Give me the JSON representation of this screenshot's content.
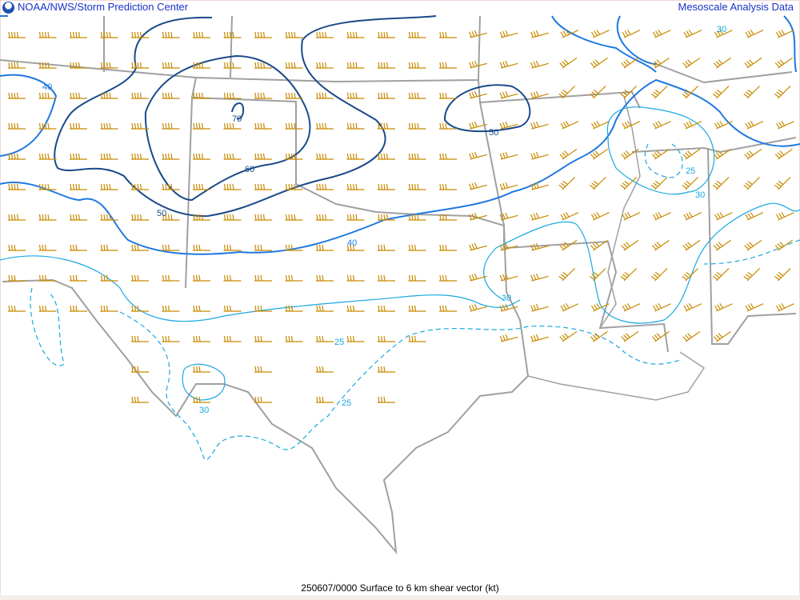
{
  "header": {
    "left_title": "NOAA/NWS/Storm Prediction Center",
    "right_title": "Mesoscale Analysis Data",
    "logo": "noaa-logo"
  },
  "footer": {
    "caption": "250607/0000 Surface to 6 km shear vector (kt)"
  },
  "colors": {
    "barb": "#c88a00",
    "boundary": "#a0a0a0",
    "contour_strong": "#1a4a8a",
    "contour_mid": "#1e78e0",
    "contour_light": "#1aa8e0"
  },
  "contour_labels": [
    {
      "id": "l40a",
      "text": "40"
    },
    {
      "id": "l70",
      "text": "70"
    },
    {
      "id": "l60",
      "text": "60"
    },
    {
      "id": "l50a",
      "text": "50"
    },
    {
      "id": "l50b",
      "text": "50"
    },
    {
      "id": "l40b",
      "text": "40"
    },
    {
      "id": "l30a",
      "text": "30"
    },
    {
      "id": "l25a",
      "text": "25"
    },
    {
      "id": "l30b",
      "text": "30"
    },
    {
      "id": "l25b",
      "text": "25"
    },
    {
      "id": "l30c",
      "text": "30"
    },
    {
      "id": "l25c",
      "text": "25"
    },
    {
      "id": "l30d",
      "text": "30"
    }
  ]
}
